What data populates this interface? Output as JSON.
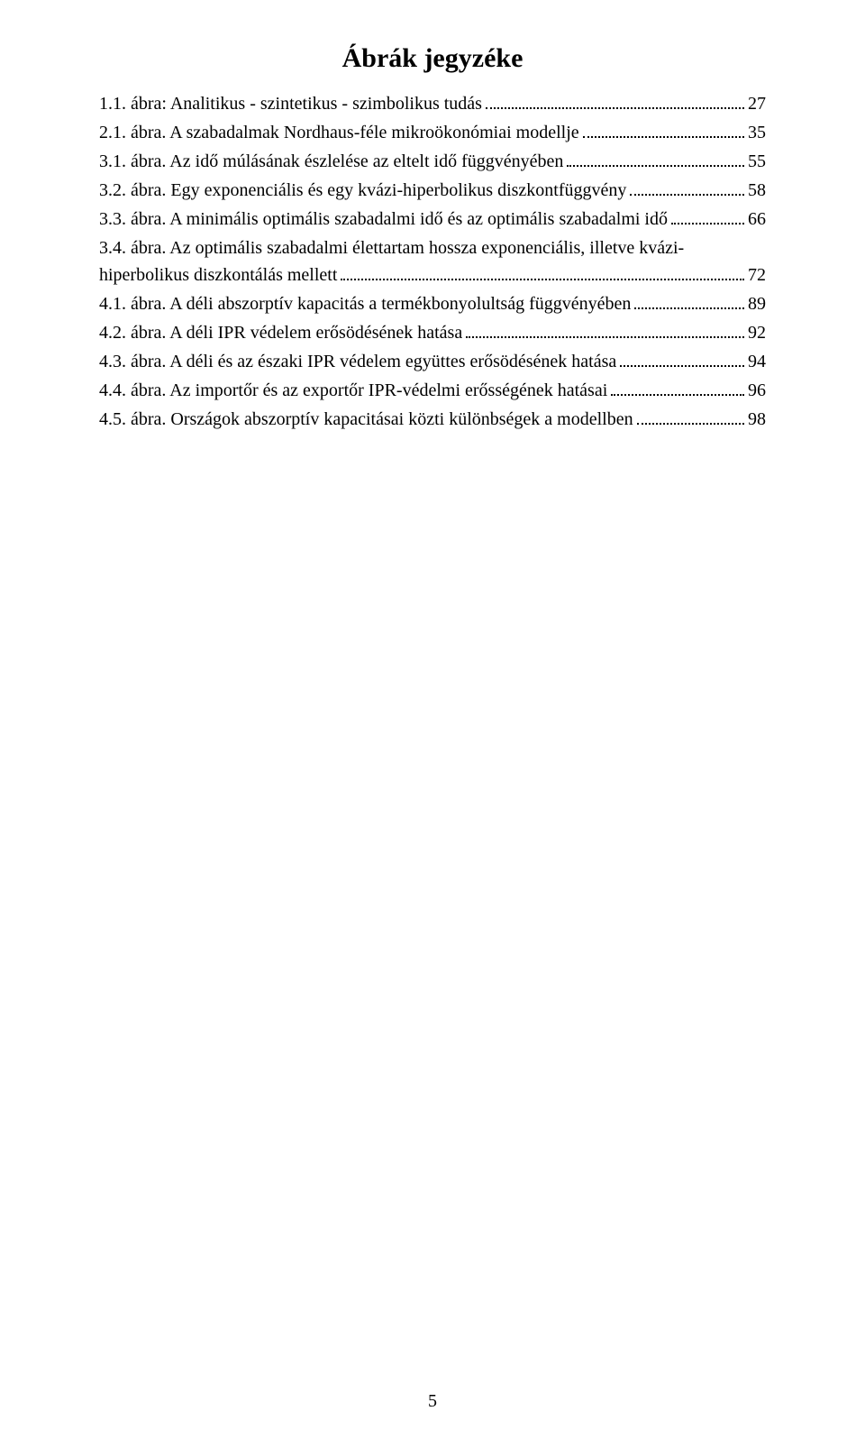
{
  "heading": "Ábrák jegyzéke",
  "entries": [
    {
      "text_a": "1.1. ábra: Analitikus - szintetikus - szimbolikus tudás",
      "text_b": "",
      "page": "27"
    },
    {
      "text_a": "2.1. ábra. A szabadalmak Nordhaus-féle mikroökonómiai modellje",
      "text_b": "",
      "page": "35"
    },
    {
      "text_a": "3.1. ábra. Az idő múlásának észlelése az eltelt idő függvényében",
      "text_b": "",
      "page": "55"
    },
    {
      "text_a": "3.2. ábra. Egy exponenciális és egy kvázi-hiperbolikus diszkontfüggvény",
      "text_b": "",
      "page": "58"
    },
    {
      "text_a": "3.3. ábra. A minimális optimális szabadalmi idő és az optimális szabadalmi idő",
      "text_b": "",
      "page": "66"
    },
    {
      "text_a": "3.4. ábra. Az optimális szabadalmi élettartam hossza exponenciális, illetve kvázi-",
      "text_b": "hiperbolikus diszkontálás mellett",
      "page": "72"
    },
    {
      "text_a": "4.1. ábra. A déli abszorptív kapacitás a termékbonyolultság függvényében",
      "text_b": "",
      "page": "89"
    },
    {
      "text_a": "4.2. ábra. A déli IPR védelem erősödésének hatása",
      "text_b": "",
      "page": "92"
    },
    {
      "text_a": "4.3. ábra. A déli és az északi IPR védelem együttes erősödésének hatása",
      "text_b": "",
      "page": "94"
    },
    {
      "text_a": "4.4. ábra. Az importőr és az exportőr IPR-védelmi erősségének hatásai",
      "text_b": "",
      "page": "96"
    },
    {
      "text_a": "4.5. ábra. Országok abszorptív kapacitásai közti különbségek a modellben",
      "text_b": "",
      "page": "98"
    }
  ],
  "footer_page_number": "5"
}
